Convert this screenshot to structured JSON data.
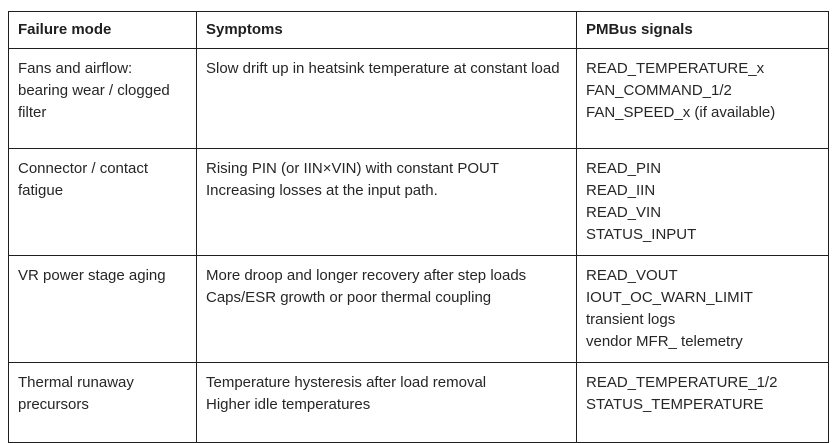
{
  "table": {
    "headers": [
      "Failure mode",
      "Symptoms",
      "PMBus signals"
    ],
    "rows": [
      {
        "failure_mode": "Fans and airflow: bearing wear / clogged filter",
        "symptoms": [
          "Slow drift up in heatsink temperature at constant load"
        ],
        "pmbus_signals": [
          "READ_TEMPERATURE_x",
          "FAN_COMMAND_1/2",
          "FAN_SPEED_x (if available)"
        ]
      },
      {
        "failure_mode": "Connector / contact fatigue",
        "symptoms": [
          "Rising PIN (or IIN×VIN) with constant POUT",
          "Increasing losses at the input path."
        ],
        "pmbus_signals": [
          "READ_PIN",
          "READ_IIN",
          "READ_VIN",
          "STATUS_INPUT"
        ]
      },
      {
        "failure_mode": "VR power stage aging",
        "symptoms": [
          "More droop and longer recovery after step loads",
          "Caps/ESR growth or poor thermal coupling"
        ],
        "pmbus_signals": [
          "READ_VOUT",
          "IOUT_OC_WARN_LIMIT",
          "transient logs",
          "vendor MFR_ telemetry"
        ]
      },
      {
        "failure_mode": "Thermal runaway precursors",
        "symptoms": [
          "Temperature hysteresis after load removal",
          "Higher idle temperatures"
        ],
        "pmbus_signals": [
          "READ_TEMPERATURE_1/2",
          "STATUS_TEMPERATURE"
        ]
      }
    ],
    "colors": {
      "border": "#1f1f1f",
      "header_text": "#1f1f1f",
      "body_text": "#262626",
      "background": "#ffffff"
    }
  }
}
